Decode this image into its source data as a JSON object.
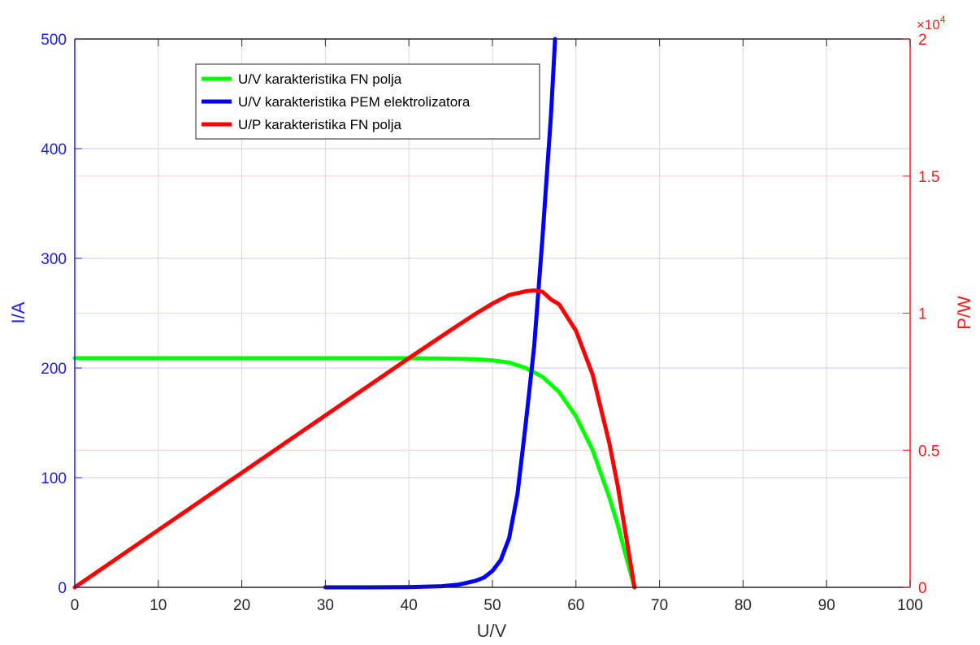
{
  "chart_data": {
    "type": "line",
    "xlabel": "U/V",
    "ylabel_left": "I/A",
    "ylabel_right": "P/W",
    "xlim": [
      0,
      100
    ],
    "ylim_left": [
      0,
      500
    ],
    "ylim_right": [
      0,
      20000
    ],
    "right_axis_multiplier": "×10",
    "right_axis_exponent": "4",
    "x_ticks": [
      "0",
      "10",
      "20",
      "30",
      "40",
      "50",
      "60",
      "70",
      "80",
      "90",
      "100"
    ],
    "y_left_ticks": [
      "0",
      "100",
      "200",
      "300",
      "400",
      "500"
    ],
    "y_right_ticks": [
      "0",
      "0.5",
      "1",
      "1.5",
      "2"
    ],
    "grid": true,
    "legend_position": "top-left",
    "colors": {
      "left_axis": "#1a1aff",
      "right_axis": "#ff1a1a",
      "green": "#00ff00",
      "blue": "#0000ff",
      "red": "#ff0000"
    },
    "series": [
      {
        "name": "U/V karakteristika FN polja",
        "axis": "left",
        "color": "#00ff00",
        "x": [
          0,
          10,
          20,
          30,
          40,
          45,
          48,
          50,
          52,
          54,
          56,
          58,
          60,
          62,
          64,
          65,
          66,
          67
        ],
        "y": [
          209,
          209,
          209,
          209,
          209,
          208.5,
          208,
          207,
          205,
          200,
          192,
          178,
          156,
          125,
          82,
          57,
          28,
          0
        ]
      },
      {
        "name": "U/V karakteristika PEM elektrolizatora",
        "axis": "left",
        "color": "#0000ff",
        "x": [
          30,
          35,
          40,
          44,
          46,
          48,
          49,
          50,
          51,
          52,
          53,
          54,
          55,
          56,
          57,
          57.5
        ],
        "y": [
          0,
          0,
          0.2,
          1,
          2.5,
          6,
          9,
          15,
          25,
          45,
          85,
          150,
          220,
          320,
          430,
          500
        ]
      },
      {
        "name": "U/P karakteristika FN polja",
        "axis": "right",
        "color": "#ff0000",
        "x": [
          0,
          10,
          20,
          30,
          40,
          45,
          48,
          50,
          52,
          54,
          55,
          56,
          57,
          58,
          60,
          62,
          64,
          65,
          66,
          67
        ],
        "y": [
          0,
          2090,
          4180,
          6270,
          8360,
          9380,
          9980,
          10350,
          10660,
          10800,
          10830,
          10780,
          10500,
          10320,
          9360,
          7750,
          5250,
          3700,
          1850,
          0
        ]
      }
    ]
  }
}
